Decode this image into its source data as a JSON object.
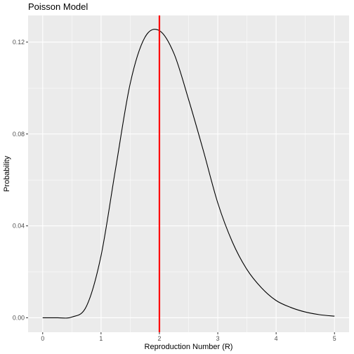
{
  "chart_data": {
    "type": "line",
    "title": "Poisson Model",
    "xlabel": "Reproduction Number (R)",
    "ylabel": "Probability",
    "xlim": [
      -0.25,
      5.25
    ],
    "ylim": [
      -0.0063,
      0.1316
    ],
    "x_ticks": [
      0,
      1,
      2,
      3,
      4,
      5
    ],
    "x_tick_labels": [
      "0",
      "1",
      "2",
      "3",
      "4",
      "5"
    ],
    "y_ticks": [
      0,
      0.04,
      0.08,
      0.12
    ],
    "y_tick_labels": [
      "0.00",
      "0.04",
      "0.08",
      "0.12"
    ],
    "grid": true,
    "x": [
      0,
      0.25,
      0.5,
      0.75,
      1,
      1.25,
      1.5,
      1.75,
      2,
      2.25,
      2.5,
      2.75,
      3,
      3.25,
      3.5,
      3.75,
      4,
      4.25,
      4.5,
      4.75,
      5
    ],
    "y": [
      0,
      0,
      0.0003,
      0.005,
      0.027,
      0.065,
      0.102,
      0.122,
      0.125,
      0.115,
      0.095,
      0.073,
      0.05,
      0.033,
      0.021,
      0.013,
      0.0075,
      0.0045,
      0.0025,
      0.0013,
      0.0007
    ],
    "vline": {
      "x": 2,
      "color": "#ff0000"
    },
    "line_color": "#000000",
    "panel_color": "#ebebeb",
    "grid_color": "#ffffff"
  }
}
